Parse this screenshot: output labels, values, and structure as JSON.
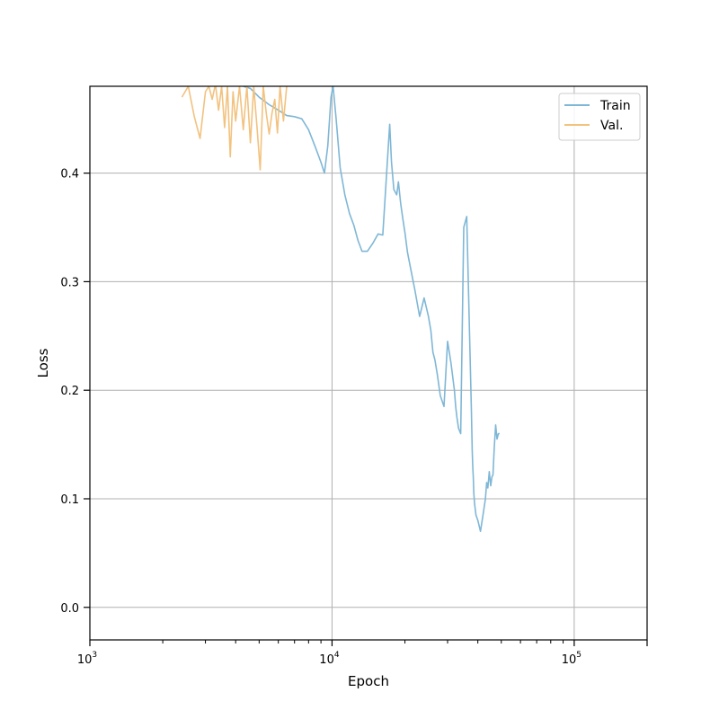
{
  "chart_data": {
    "type": "line",
    "title": "",
    "xlabel": "Epoch",
    "ylabel": "Loss",
    "xscale": "log",
    "xlim": [
      1000,
      200000
    ],
    "ylim": [
      -0.03,
      0.48
    ],
    "grid": true,
    "legend": "top-right",
    "x_major_ticks": [
      {
        "value": 1000,
        "mantissa": "10",
        "exp": "3"
      },
      {
        "value": 10000,
        "mantissa": "10",
        "exp": "4"
      },
      {
        "value": 100000,
        "mantissa": "10",
        "exp": "5"
      }
    ],
    "y_ticks": [
      {
        "value": 0.0,
        "label": "0.0"
      },
      {
        "value": 0.1,
        "label": "0.1"
      },
      {
        "value": 0.2,
        "label": "0.2"
      },
      {
        "value": 0.3,
        "label": "0.3"
      },
      {
        "value": 0.4,
        "label": "0.4"
      }
    ],
    "series": [
      {
        "name": "Train",
        "color": "#7fb7d6",
        "x": [
          4300,
          4600,
          5000,
          5500,
          6000,
          6500,
          7000,
          7500,
          8000,
          8500,
          9000,
          9300,
          9600,
          9900,
          10100,
          10400,
          10800,
          11300,
          11800,
          12300,
          12800,
          13300,
          14000,
          14800,
          15500,
          16200,
          16800,
          17300,
          17600,
          18000,
          18500,
          18800,
          19200,
          19600,
          20000,
          20500,
          21200,
          22000,
          23000,
          24000,
          25000,
          25600,
          26100,
          26600,
          27200,
          28000,
          29000,
          30000,
          31000,
          32000,
          32400,
          32800,
          33300,
          34000,
          35000,
          36000,
          37000,
          37600,
          37900,
          38100,
          38300,
          38500,
          38800,
          39300,
          40000,
          41000,
          42000,
          43000,
          43500,
          44000,
          44600,
          45200,
          45700,
          46200,
          46800,
          47400,
          48000,
          48600,
          49200
        ],
        "y": [
          0.48,
          0.478,
          0.47,
          0.463,
          0.458,
          0.453,
          0.452,
          0.45,
          0.44,
          0.425,
          0.41,
          0.4,
          0.425,
          0.47,
          0.48,
          0.45,
          0.405,
          0.38,
          0.363,
          0.352,
          0.338,
          0.328,
          0.328,
          0.336,
          0.344,
          0.343,
          0.4,
          0.445,
          0.41,
          0.385,
          0.38,
          0.392,
          0.372,
          0.358,
          0.345,
          0.327,
          0.31,
          0.292,
          0.268,
          0.285,
          0.268,
          0.255,
          0.235,
          0.228,
          0.215,
          0.195,
          0.185,
          0.245,
          0.225,
          0.2,
          0.185,
          0.175,
          0.165,
          0.16,
          0.35,
          0.36,
          0.25,
          0.185,
          0.145,
          0.13,
          0.12,
          0.105,
          0.095,
          0.085,
          0.08,
          0.07,
          0.085,
          0.1,
          0.115,
          0.11,
          0.125,
          0.112,
          0.12,
          0.122,
          0.148,
          0.168,
          0.155,
          0.16,
          0.16
        ]
      },
      {
        "name": "Val.",
        "color": "#f2c27f",
        "x": [
          2400,
          2550,
          2700,
          2850,
          3000,
          3100,
          3200,
          3300,
          3400,
          3500,
          3600,
          3700,
          3800,
          3900,
          4000,
          4150,
          4300,
          4450,
          4600,
          4750,
          4900,
          5050,
          5200,
          5350,
          5500,
          5650,
          5800,
          5950,
          6100,
          6300,
          6500
        ],
        "y": [
          0.47,
          0.48,
          0.452,
          0.432,
          0.475,
          0.48,
          0.468,
          0.482,
          0.458,
          0.48,
          0.442,
          0.48,
          0.415,
          0.475,
          0.448,
          0.48,
          0.44,
          0.48,
          0.428,
          0.48,
          0.442,
          0.403,
          0.48,
          0.455,
          0.436,
          0.455,
          0.468,
          0.437,
          0.48,
          0.448,
          0.48
        ]
      }
    ]
  }
}
